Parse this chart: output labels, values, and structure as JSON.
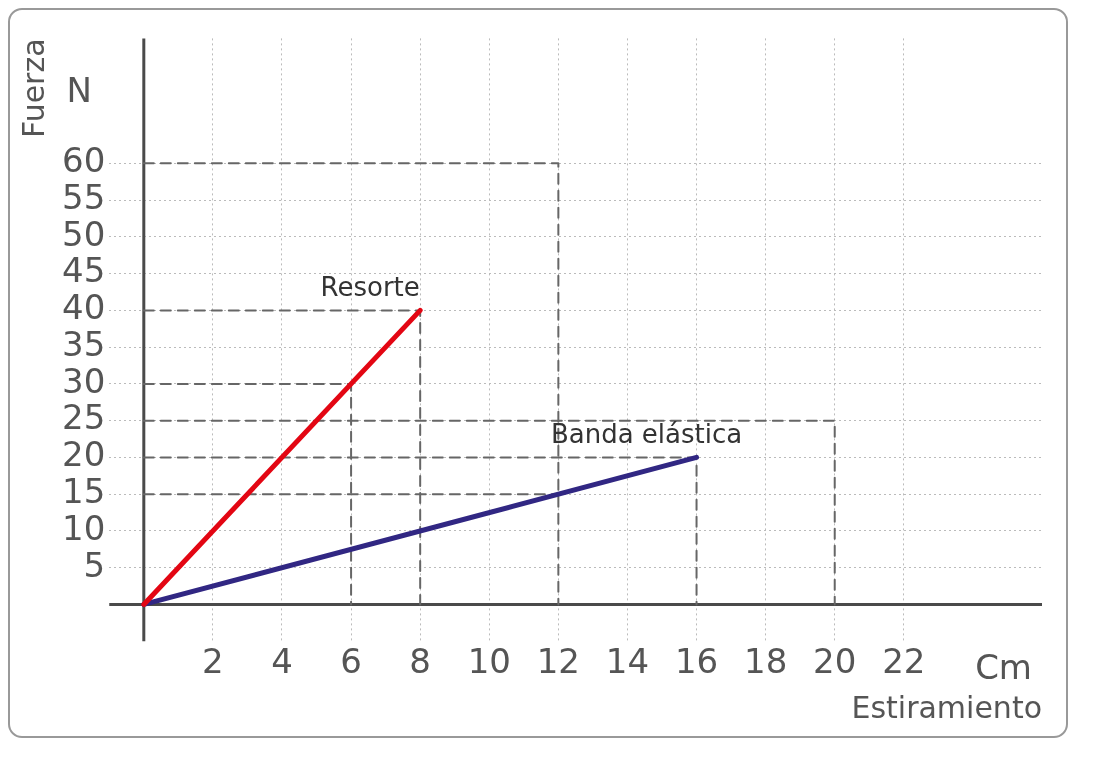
{
  "chart_data": {
    "type": "line",
    "xlabel": "Estiramiento",
    "ylabel": "Fuerza",
    "annotations": [
      "N",
      "Cm"
    ],
    "xlim": [
      -1,
      26
    ],
    "ylim": [
      -5,
      77
    ],
    "xticks": [
      2,
      4,
      6,
      8,
      10,
      12,
      14,
      16,
      18,
      20,
      22
    ],
    "yticks": [
      5,
      10,
      15,
      20,
      25,
      30,
      35,
      40,
      45,
      50,
      55,
      60
    ],
    "grid": true,
    "legend": false,
    "marker": "none",
    "series": [
      {
        "name": "Resorte",
        "color": "#e30613",
        "x": [
          0,
          8
        ],
        "values": [
          0,
          40
        ]
      },
      {
        "name": "Banda elástica",
        "color": "#312783",
        "x": [
          0,
          16
        ],
        "values": [
          0,
          20
        ]
      },
      {
        "color": "#666666",
        "line_style": "dashed",
        "x": [
          0,
          12,
          12
        ],
        "values": [
          60,
          60,
          0
        ]
      },
      {
        "color": "#666666",
        "line_style": "dashed",
        "x": [
          0,
          8,
          8
        ],
        "values": [
          40,
          40,
          0
        ]
      },
      {
        "color": "#666666",
        "line_style": "dashed",
        "x": [
          0,
          6,
          6
        ],
        "values": [
          30,
          30,
          0
        ]
      },
      {
        "color": "#666666",
        "line_style": "dashed",
        "x": [
          0,
          20,
          20
        ],
        "values": [
          25,
          25,
          0
        ]
      },
      {
        "color": "#666666",
        "line_style": "dashed",
        "x": [
          0,
          16,
          16
        ],
        "values": [
          20,
          20,
          0
        ]
      },
      {
        "color": "#666666",
        "line_style": "dashed",
        "x": [
          0,
          12
        ],
        "values": [
          15,
          15
        ]
      }
    ]
  }
}
